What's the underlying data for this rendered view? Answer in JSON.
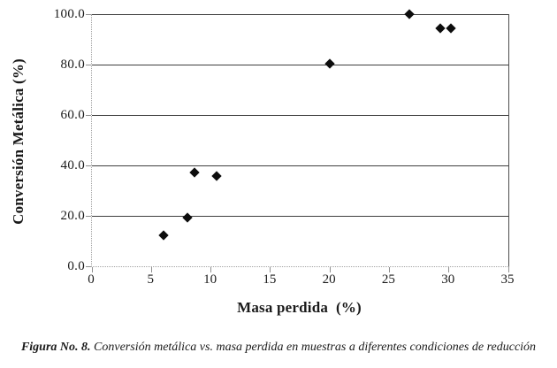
{
  "chart_data": {
    "type": "scatter",
    "title": "",
    "xlabel": "Masa perdida  (%)",
    "ylabel": "Conversión Metálica (%)",
    "xlim": [
      0,
      35
    ],
    "ylim": [
      0,
      100
    ],
    "x_tick_values": [
      0,
      5,
      10,
      15,
      20,
      25,
      30,
      35
    ],
    "x_tick_labels": [
      "0",
      "5",
      "10",
      "15",
      "20",
      "25",
      "30",
      "35"
    ],
    "y_tick_values": [
      0,
      20,
      40,
      60,
      80,
      100
    ],
    "y_tick_labels": [
      "0.0",
      "20.0",
      "40.0",
      "60.0",
      "80.0",
      "100.0"
    ],
    "grid": "horizontal",
    "legend": "none",
    "marker": "diamond",
    "marker_color": "#0d0d0d",
    "gridline_color": "#3f3f3f",
    "axis_line_color": "#a3a3a3",
    "points": [
      {
        "x": 6.0,
        "y": 12.2
      },
      {
        "x": 8.0,
        "y": 19.3
      },
      {
        "x": 8.6,
        "y": 37.3
      },
      {
        "x": 10.5,
        "y": 35.9
      },
      {
        "x": 20.0,
        "y": 80.5
      },
      {
        "x": 26.7,
        "y": 100.0
      },
      {
        "x": 29.3,
        "y": 94.4
      },
      {
        "x": 30.2,
        "y": 94.4
      }
    ]
  },
  "caption": {
    "label": "Figura No. 8.",
    "text": "Conversión metálica vs. masa perdida en muestras a diferentes condiciones de reducción"
  }
}
